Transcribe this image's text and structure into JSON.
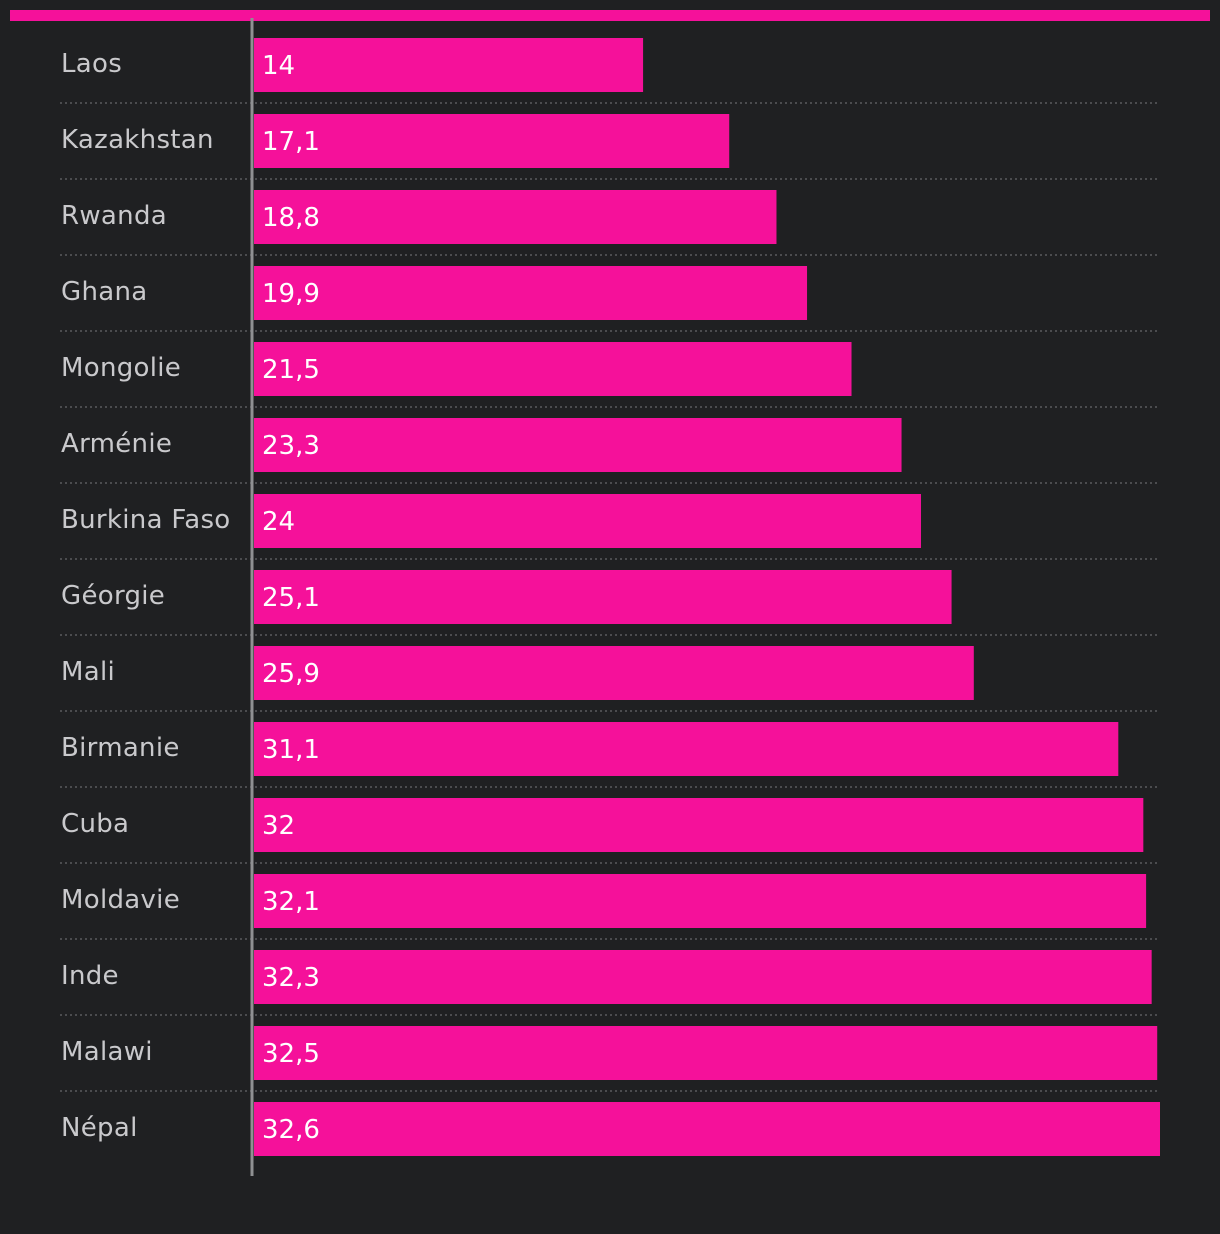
{
  "colors": {
    "background": "#1f2022",
    "accent": "#f5119a",
    "label": "#c9c9cc",
    "value_text": "#ffffff",
    "axis": "#8f9092",
    "divider": "#5a5b5e"
  },
  "chart_data": {
    "type": "bar",
    "orientation": "horizontal",
    "title": "",
    "xlabel": "",
    "ylabel": "",
    "xlim": [
      0,
      32.6
    ],
    "grid": false,
    "legend": "none",
    "categories": [
      "Laos",
      "Kazakhstan",
      "Rwanda",
      "Ghana",
      "Mongolie",
      "Arménie",
      "Burkina Faso",
      "Géorgie",
      "Mali",
      "Birmanie",
      "Cuba",
      "Moldavie",
      "Inde",
      "Malawi",
      "Népal"
    ],
    "values": [
      14,
      17.1,
      18.8,
      19.9,
      21.5,
      23.3,
      24,
      25.1,
      25.9,
      31.1,
      32,
      32.1,
      32.3,
      32.5,
      32.6
    ],
    "value_labels": [
      "14",
      "17,1",
      "18,8",
      "19,9",
      "21,5",
      "23,3",
      "24",
      "25,1",
      "25,9",
      "31,1",
      "32",
      "32,1",
      "32,3",
      "32,5",
      "32,6"
    ]
  }
}
